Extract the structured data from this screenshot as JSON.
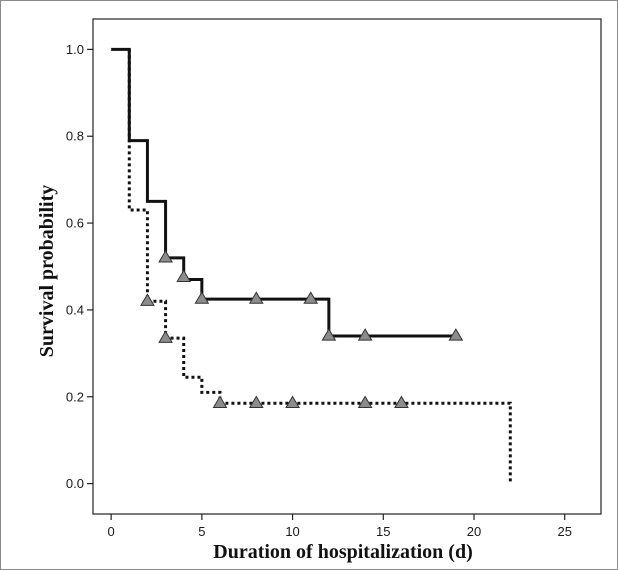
{
  "chart_data": {
    "type": "line",
    "title": "",
    "xlabel": "Duration of hospitalization (d)",
    "ylabel": "Survival probability",
    "xlim": [
      -1,
      27
    ],
    "ylim": [
      -0.07,
      1.07
    ],
    "xticks": [
      0,
      5,
      10,
      15,
      20,
      25
    ],
    "yticks": [
      0.0,
      0.2,
      0.4,
      0.6,
      0.8,
      1.0
    ],
    "x_tick_labels": [
      "0",
      "5",
      "10",
      "15",
      "20",
      "25"
    ],
    "y_tick_labels": [
      "0.0",
      "0.2",
      "0.4",
      "0.6",
      "0.8",
      "1.0"
    ],
    "grid": false,
    "legend": "none",
    "series": [
      {
        "style": "solid",
        "color": "#111111",
        "steps": [
          [
            0,
            1.0
          ],
          [
            1,
            0.79
          ],
          [
            2,
            0.65
          ],
          [
            3,
            0.52
          ],
          [
            4,
            0.47
          ],
          [
            5,
            0.425
          ],
          [
            12,
            0.34
          ],
          [
            19,
            0.34
          ]
        ],
        "censored": [
          [
            3,
            0.52
          ],
          [
            4,
            0.475
          ],
          [
            5,
            0.425
          ],
          [
            8,
            0.425
          ],
          [
            11,
            0.425
          ],
          [
            12,
            0.34
          ],
          [
            14,
            0.34
          ],
          [
            19,
            0.34
          ]
        ]
      },
      {
        "style": "dotted",
        "color": "#111111",
        "steps": [
          [
            1,
            1.0
          ],
          [
            1,
            0.63
          ],
          [
            2,
            0.42
          ],
          [
            3,
            0.335
          ],
          [
            4,
            0.245
          ],
          [
            5,
            0.21
          ],
          [
            6,
            0.185
          ],
          [
            22,
            0.0
          ]
        ],
        "censored": [
          [
            2,
            0.42
          ],
          [
            3,
            0.335
          ],
          [
            6,
            0.185
          ],
          [
            8,
            0.185
          ],
          [
            10,
            0.185
          ],
          [
            14,
            0.185
          ],
          [
            16,
            0.185
          ]
        ]
      }
    ],
    "censor_marker_color": "#8c8c8c"
  }
}
